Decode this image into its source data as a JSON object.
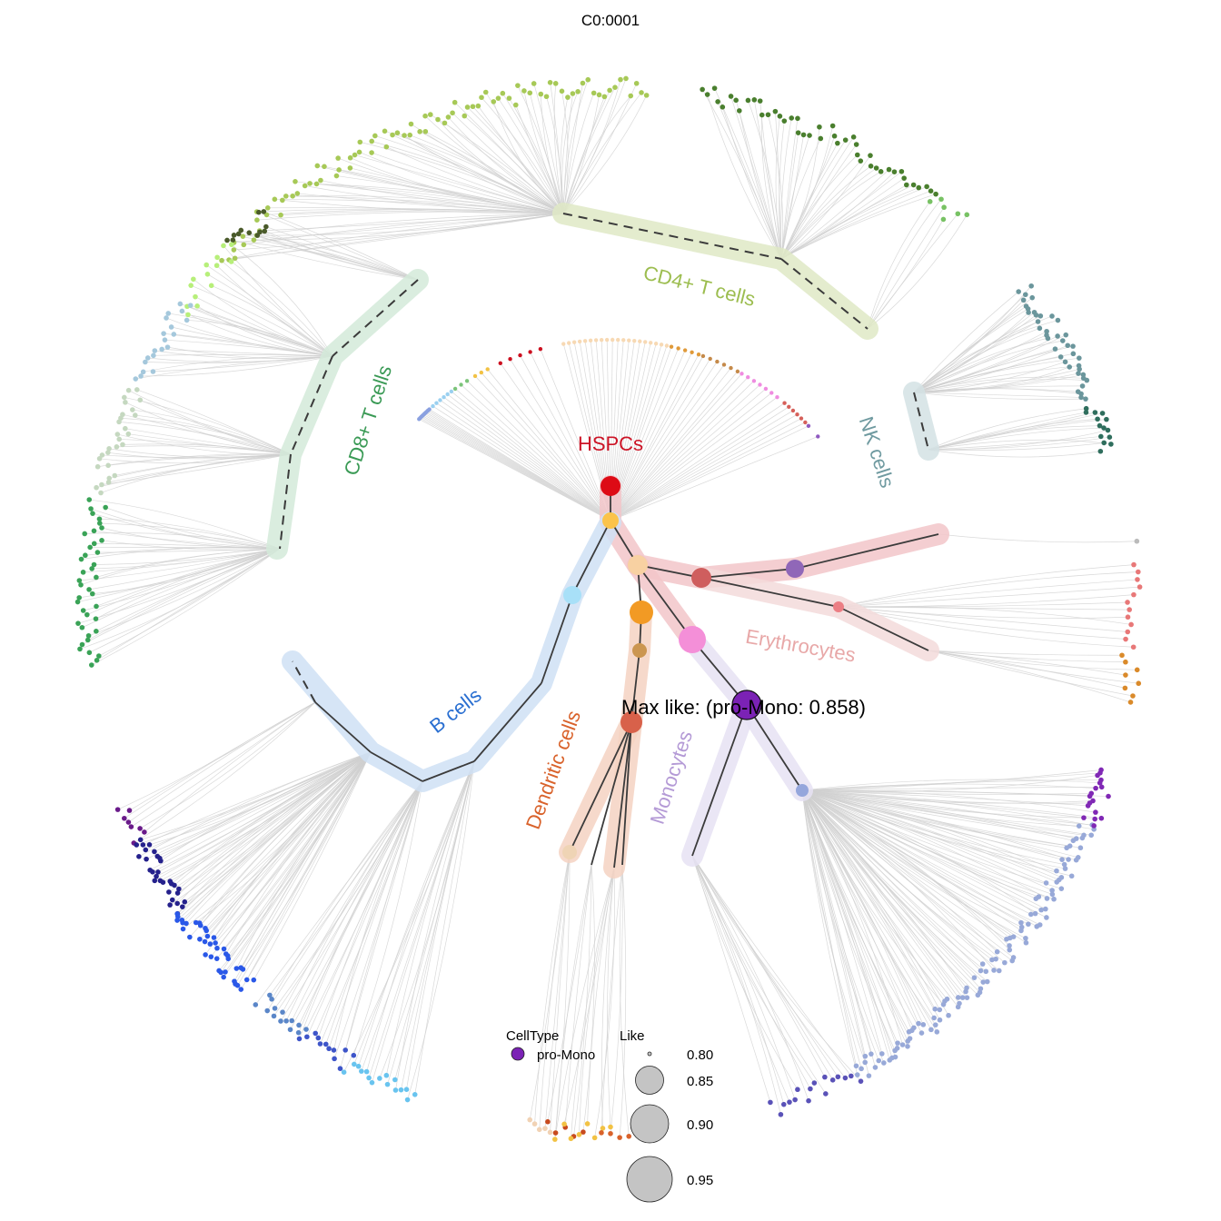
{
  "title": "C0:0001",
  "max_like_label": "Max like: (pro-Mono: 0.858)",
  "clades": [
    {
      "id": "cd4",
      "label": "CD4+ T cells",
      "color": "#9cbd4f"
    },
    {
      "id": "cd8",
      "label": "CD8+ T cells",
      "color": "#3a9a55"
    },
    {
      "id": "nk",
      "label": "NK cells",
      "color": "#6f9aa0"
    },
    {
      "id": "hspc",
      "label": "HSPCs",
      "color": "#cc1426"
    },
    {
      "id": "ery",
      "label": "Erythrocytes",
      "color": "#e8a8a8"
    },
    {
      "id": "bcell",
      "label": "B cells",
      "color": "#2a6fd1"
    },
    {
      "id": "dc",
      "label": "Dendritic cells",
      "color": "#d9622b"
    },
    {
      "id": "mono",
      "label": "Monocytes",
      "color": "#b49ad6"
    }
  ],
  "legend": {
    "celltype_title": "CellType",
    "celltype_items": [
      {
        "label": "pro-Mono",
        "color": "#7b22b5"
      }
    ],
    "like_title": "Like",
    "like_items": [
      {
        "label": "0.80",
        "value": 0.8
      },
      {
        "label": "0.85",
        "value": 0.85
      },
      {
        "label": "0.90",
        "value": 0.9
      },
      {
        "label": "0.95",
        "value": 0.95
      }
    ]
  }
}
